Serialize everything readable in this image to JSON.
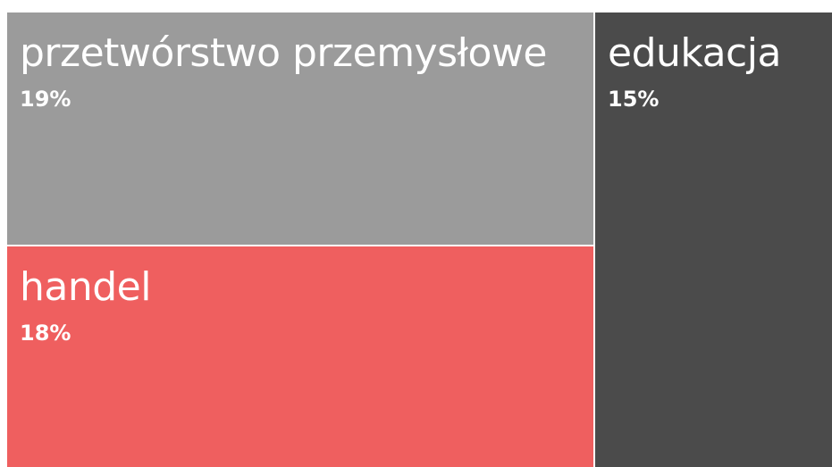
{
  "chart_data": {
    "type": "treemap",
    "tiles": [
      {
        "name": "przetwórstwo przemysłowe",
        "value_label": "19%",
        "value": 19,
        "color": "#9b9b9b"
      },
      {
        "name": "handel",
        "value_label": "18%",
        "value": 18,
        "color": "#ef5f5f"
      },
      {
        "name": "edukacja",
        "value_label": "15%",
        "value": 15,
        "color": "#4b4b4b"
      }
    ]
  }
}
